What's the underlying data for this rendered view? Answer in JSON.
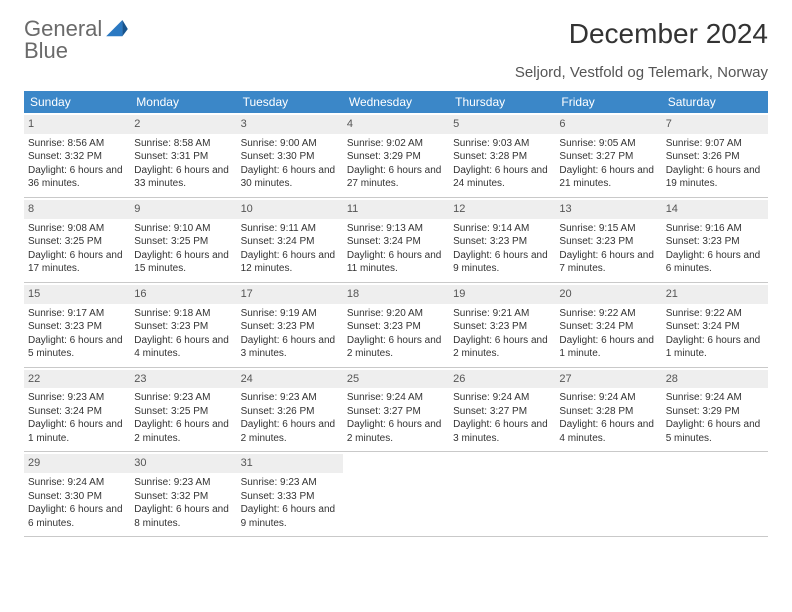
{
  "brand": {
    "name_line1": "General",
    "name_line2": "Blue",
    "mark_color": "#2b79c2"
  },
  "title": "December 2024",
  "subtitle": "Seljord, Vestfold og Telemark, Norway",
  "dayhead_bg": "#3b87c8",
  "dayhead_fg": "#ffffff",
  "band_bg": "#eeeeee",
  "rule_color": "#c9c9c9",
  "text_color": "#333333",
  "day_names": [
    "Sunday",
    "Monday",
    "Tuesday",
    "Wednesday",
    "Thursday",
    "Friday",
    "Saturday"
  ],
  "weeks": [
    [
      {
        "n": "1",
        "sunrise": "Sunrise: 8:56 AM",
        "sunset": "Sunset: 3:32 PM",
        "daylight": "Daylight: 6 hours and 36 minutes."
      },
      {
        "n": "2",
        "sunrise": "Sunrise: 8:58 AM",
        "sunset": "Sunset: 3:31 PM",
        "daylight": "Daylight: 6 hours and 33 minutes."
      },
      {
        "n": "3",
        "sunrise": "Sunrise: 9:00 AM",
        "sunset": "Sunset: 3:30 PM",
        "daylight": "Daylight: 6 hours and 30 minutes."
      },
      {
        "n": "4",
        "sunrise": "Sunrise: 9:02 AM",
        "sunset": "Sunset: 3:29 PM",
        "daylight": "Daylight: 6 hours and 27 minutes."
      },
      {
        "n": "5",
        "sunrise": "Sunrise: 9:03 AM",
        "sunset": "Sunset: 3:28 PM",
        "daylight": "Daylight: 6 hours and 24 minutes."
      },
      {
        "n": "6",
        "sunrise": "Sunrise: 9:05 AM",
        "sunset": "Sunset: 3:27 PM",
        "daylight": "Daylight: 6 hours and 21 minutes."
      },
      {
        "n": "7",
        "sunrise": "Sunrise: 9:07 AM",
        "sunset": "Sunset: 3:26 PM",
        "daylight": "Daylight: 6 hours and 19 minutes."
      }
    ],
    [
      {
        "n": "8",
        "sunrise": "Sunrise: 9:08 AM",
        "sunset": "Sunset: 3:25 PM",
        "daylight": "Daylight: 6 hours and 17 minutes."
      },
      {
        "n": "9",
        "sunrise": "Sunrise: 9:10 AM",
        "sunset": "Sunset: 3:25 PM",
        "daylight": "Daylight: 6 hours and 15 minutes."
      },
      {
        "n": "10",
        "sunrise": "Sunrise: 9:11 AM",
        "sunset": "Sunset: 3:24 PM",
        "daylight": "Daylight: 6 hours and 12 minutes."
      },
      {
        "n": "11",
        "sunrise": "Sunrise: 9:13 AM",
        "sunset": "Sunset: 3:24 PM",
        "daylight": "Daylight: 6 hours and 11 minutes."
      },
      {
        "n": "12",
        "sunrise": "Sunrise: 9:14 AM",
        "sunset": "Sunset: 3:23 PM",
        "daylight": "Daylight: 6 hours and 9 minutes."
      },
      {
        "n": "13",
        "sunrise": "Sunrise: 9:15 AM",
        "sunset": "Sunset: 3:23 PM",
        "daylight": "Daylight: 6 hours and 7 minutes."
      },
      {
        "n": "14",
        "sunrise": "Sunrise: 9:16 AM",
        "sunset": "Sunset: 3:23 PM",
        "daylight": "Daylight: 6 hours and 6 minutes."
      }
    ],
    [
      {
        "n": "15",
        "sunrise": "Sunrise: 9:17 AM",
        "sunset": "Sunset: 3:23 PM",
        "daylight": "Daylight: 6 hours and 5 minutes."
      },
      {
        "n": "16",
        "sunrise": "Sunrise: 9:18 AM",
        "sunset": "Sunset: 3:23 PM",
        "daylight": "Daylight: 6 hours and 4 minutes."
      },
      {
        "n": "17",
        "sunrise": "Sunrise: 9:19 AM",
        "sunset": "Sunset: 3:23 PM",
        "daylight": "Daylight: 6 hours and 3 minutes."
      },
      {
        "n": "18",
        "sunrise": "Sunrise: 9:20 AM",
        "sunset": "Sunset: 3:23 PM",
        "daylight": "Daylight: 6 hours and 2 minutes."
      },
      {
        "n": "19",
        "sunrise": "Sunrise: 9:21 AM",
        "sunset": "Sunset: 3:23 PM",
        "daylight": "Daylight: 6 hours and 2 minutes."
      },
      {
        "n": "20",
        "sunrise": "Sunrise: 9:22 AM",
        "sunset": "Sunset: 3:24 PM",
        "daylight": "Daylight: 6 hours and 1 minute."
      },
      {
        "n": "21",
        "sunrise": "Sunrise: 9:22 AM",
        "sunset": "Sunset: 3:24 PM",
        "daylight": "Daylight: 6 hours and 1 minute."
      }
    ],
    [
      {
        "n": "22",
        "sunrise": "Sunrise: 9:23 AM",
        "sunset": "Sunset: 3:24 PM",
        "daylight": "Daylight: 6 hours and 1 minute."
      },
      {
        "n": "23",
        "sunrise": "Sunrise: 9:23 AM",
        "sunset": "Sunset: 3:25 PM",
        "daylight": "Daylight: 6 hours and 2 minutes."
      },
      {
        "n": "24",
        "sunrise": "Sunrise: 9:23 AM",
        "sunset": "Sunset: 3:26 PM",
        "daylight": "Daylight: 6 hours and 2 minutes."
      },
      {
        "n": "25",
        "sunrise": "Sunrise: 9:24 AM",
        "sunset": "Sunset: 3:27 PM",
        "daylight": "Daylight: 6 hours and 2 minutes."
      },
      {
        "n": "26",
        "sunrise": "Sunrise: 9:24 AM",
        "sunset": "Sunset: 3:27 PM",
        "daylight": "Daylight: 6 hours and 3 minutes."
      },
      {
        "n": "27",
        "sunrise": "Sunrise: 9:24 AM",
        "sunset": "Sunset: 3:28 PM",
        "daylight": "Daylight: 6 hours and 4 minutes."
      },
      {
        "n": "28",
        "sunrise": "Sunrise: 9:24 AM",
        "sunset": "Sunset: 3:29 PM",
        "daylight": "Daylight: 6 hours and 5 minutes."
      }
    ],
    [
      {
        "n": "29",
        "sunrise": "Sunrise: 9:24 AM",
        "sunset": "Sunset: 3:30 PM",
        "daylight": "Daylight: 6 hours and 6 minutes."
      },
      {
        "n": "30",
        "sunrise": "Sunrise: 9:23 AM",
        "sunset": "Sunset: 3:32 PM",
        "daylight": "Daylight: 6 hours and 8 minutes."
      },
      {
        "n": "31",
        "sunrise": "Sunrise: 9:23 AM",
        "sunset": "Sunset: 3:33 PM",
        "daylight": "Daylight: 6 hours and 9 minutes."
      },
      {
        "empty": true
      },
      {
        "empty": true
      },
      {
        "empty": true
      },
      {
        "empty": true
      }
    ]
  ]
}
